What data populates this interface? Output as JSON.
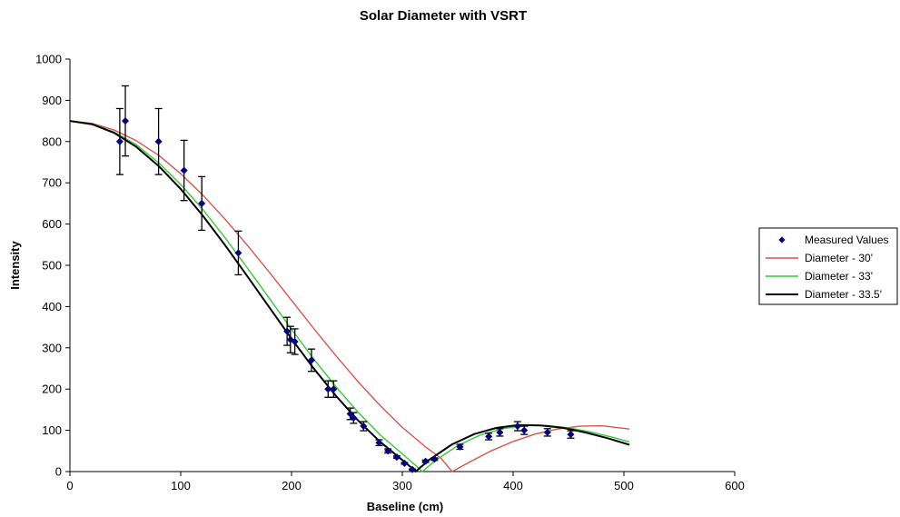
{
  "chart_data": {
    "type": "scatter",
    "title": "Solar Diameter with VSRT",
    "xlabel": "Baseline (cm)",
    "ylabel": "Intensity",
    "xlim": [
      0,
      600
    ],
    "ylim": [
      0,
      1000
    ],
    "x_ticks": [
      0,
      100,
      200,
      300,
      400,
      500,
      600
    ],
    "y_ticks": [
      0,
      100,
      200,
      300,
      400,
      500,
      600,
      700,
      800,
      900,
      1000
    ],
    "grid": false,
    "legend_position": "right",
    "series": [
      {
        "name": "Measured Values",
        "kind": "scatter",
        "color": "#000080",
        "points": [
          {
            "x": 45,
            "y": 800,
            "err": 80
          },
          {
            "x": 50,
            "y": 850,
            "err": 85
          },
          {
            "x": 80,
            "y": 800,
            "err": 80
          },
          {
            "x": 103,
            "y": 730,
            "err": 73
          },
          {
            "x": 119,
            "y": 650,
            "err": 65
          },
          {
            "x": 152,
            "y": 530,
            "err": 53
          },
          {
            "x": 196,
            "y": 340,
            "err": 34
          },
          {
            "x": 199,
            "y": 320,
            "err": 32
          },
          {
            "x": 203,
            "y": 315,
            "err": 31
          },
          {
            "x": 218,
            "y": 270,
            "err": 27
          },
          {
            "x": 233,
            "y": 200,
            "err": 20
          },
          {
            "x": 238,
            "y": 200,
            "err": 20
          },
          {
            "x": 253,
            "y": 140,
            "err": 14
          },
          {
            "x": 256,
            "y": 130,
            "err": 13
          },
          {
            "x": 265,
            "y": 110,
            "err": 11
          },
          {
            "x": 279,
            "y": 70,
            "err": 7
          },
          {
            "x": 287,
            "y": 50,
            "err": 5
          },
          {
            "x": 295,
            "y": 35,
            "err": 3
          },
          {
            "x": 302,
            "y": 20,
            "err": 2
          },
          {
            "x": 309,
            "y": 5,
            "err": 1
          },
          {
            "x": 321,
            "y": 25,
            "err": 3
          },
          {
            "x": 329,
            "y": 30,
            "err": 3
          },
          {
            "x": 352,
            "y": 60,
            "err": 6
          },
          {
            "x": 378,
            "y": 85,
            "err": 8
          },
          {
            "x": 388,
            "y": 95,
            "err": 9
          },
          {
            "x": 404,
            "y": 110,
            "err": 11
          },
          {
            "x": 410,
            "y": 100,
            "err": 10
          },
          {
            "x": 431,
            "y": 95,
            "err": 9
          },
          {
            "x": 452,
            "y": 90,
            "err": 9
          }
        ]
      },
      {
        "name": "Diameter - 30'",
        "kind": "line",
        "color": "#d9534f",
        "width": 1.4,
        "points": [
          {
            "x": 0,
            "y": 850
          },
          {
            "x": 20,
            "y": 844
          },
          {
            "x": 40,
            "y": 828
          },
          {
            "x": 60,
            "y": 802
          },
          {
            "x": 80,
            "y": 767
          },
          {
            "x": 100,
            "y": 722
          },
          {
            "x": 120,
            "y": 670
          },
          {
            "x": 140,
            "y": 612
          },
          {
            "x": 160,
            "y": 549
          },
          {
            "x": 180,
            "y": 483
          },
          {
            "x": 200,
            "y": 415
          },
          {
            "x": 220,
            "y": 347
          },
          {
            "x": 240,
            "y": 281
          },
          {
            "x": 260,
            "y": 218
          },
          {
            "x": 280,
            "y": 160
          },
          {
            "x": 300,
            "y": 107
          },
          {
            "x": 320,
            "y": 62
          },
          {
            "x": 335,
            "y": 32
          },
          {
            "x": 345,
            "y": 0
          },
          {
            "x": 360,
            "y": 22
          },
          {
            "x": 380,
            "y": 50
          },
          {
            "x": 400,
            "y": 73
          },
          {
            "x": 420,
            "y": 91
          },
          {
            "x": 440,
            "y": 103
          },
          {
            "x": 460,
            "y": 110
          },
          {
            "x": 480,
            "y": 111
          },
          {
            "x": 505,
            "y": 103
          }
        ]
      },
      {
        "name": "Diameter - 33'",
        "kind": "line",
        "color": "#33cc33",
        "width": 1.4,
        "points": [
          {
            "x": 0,
            "y": 850
          },
          {
            "x": 20,
            "y": 843
          },
          {
            "x": 40,
            "y": 823
          },
          {
            "x": 60,
            "y": 792
          },
          {
            "x": 80,
            "y": 749
          },
          {
            "x": 100,
            "y": 696
          },
          {
            "x": 120,
            "y": 635
          },
          {
            "x": 140,
            "y": 567
          },
          {
            "x": 160,
            "y": 494
          },
          {
            "x": 180,
            "y": 420
          },
          {
            "x": 200,
            "y": 345
          },
          {
            "x": 220,
            "y": 273
          },
          {
            "x": 240,
            "y": 206
          },
          {
            "x": 260,
            "y": 144
          },
          {
            "x": 280,
            "y": 89
          },
          {
            "x": 300,
            "y": 43
          },
          {
            "x": 312,
            "y": 15
          },
          {
            "x": 318,
            "y": 0
          },
          {
            "x": 330,
            "y": 27
          },
          {
            "x": 350,
            "y": 63
          },
          {
            "x": 370,
            "y": 88
          },
          {
            "x": 390,
            "y": 104
          },
          {
            "x": 410,
            "y": 111
          },
          {
            "x": 430,
            "y": 112
          },
          {
            "x": 450,
            "y": 106
          },
          {
            "x": 470,
            "y": 96
          },
          {
            "x": 490,
            "y": 83
          },
          {
            "x": 505,
            "y": 72
          }
        ]
      },
      {
        "name": "Diameter - 33.5'",
        "kind": "line",
        "color": "#000000",
        "width": 2,
        "points": [
          {
            "x": 0,
            "y": 850
          },
          {
            "x": 20,
            "y": 842
          },
          {
            "x": 40,
            "y": 821
          },
          {
            "x": 60,
            "y": 787
          },
          {
            "x": 80,
            "y": 741
          },
          {
            "x": 100,
            "y": 685
          },
          {
            "x": 120,
            "y": 620
          },
          {
            "x": 140,
            "y": 549
          },
          {
            "x": 160,
            "y": 474
          },
          {
            "x": 180,
            "y": 398
          },
          {
            "x": 200,
            "y": 322
          },
          {
            "x": 220,
            "y": 250
          },
          {
            "x": 240,
            "y": 184
          },
          {
            "x": 260,
            "y": 124
          },
          {
            "x": 280,
            "y": 72
          },
          {
            "x": 300,
            "y": 28
          },
          {
            "x": 308,
            "y": 10
          },
          {
            "x": 312,
            "y": 0
          },
          {
            "x": 325,
            "y": 30
          },
          {
            "x": 345,
            "y": 66
          },
          {
            "x": 365,
            "y": 91
          },
          {
            "x": 385,
            "y": 106
          },
          {
            "x": 405,
            "y": 113
          },
          {
            "x": 425,
            "y": 112
          },
          {
            "x": 445,
            "y": 106
          },
          {
            "x": 465,
            "y": 95
          },
          {
            "x": 485,
            "y": 81
          },
          {
            "x": 505,
            "y": 65
          }
        ]
      }
    ]
  }
}
